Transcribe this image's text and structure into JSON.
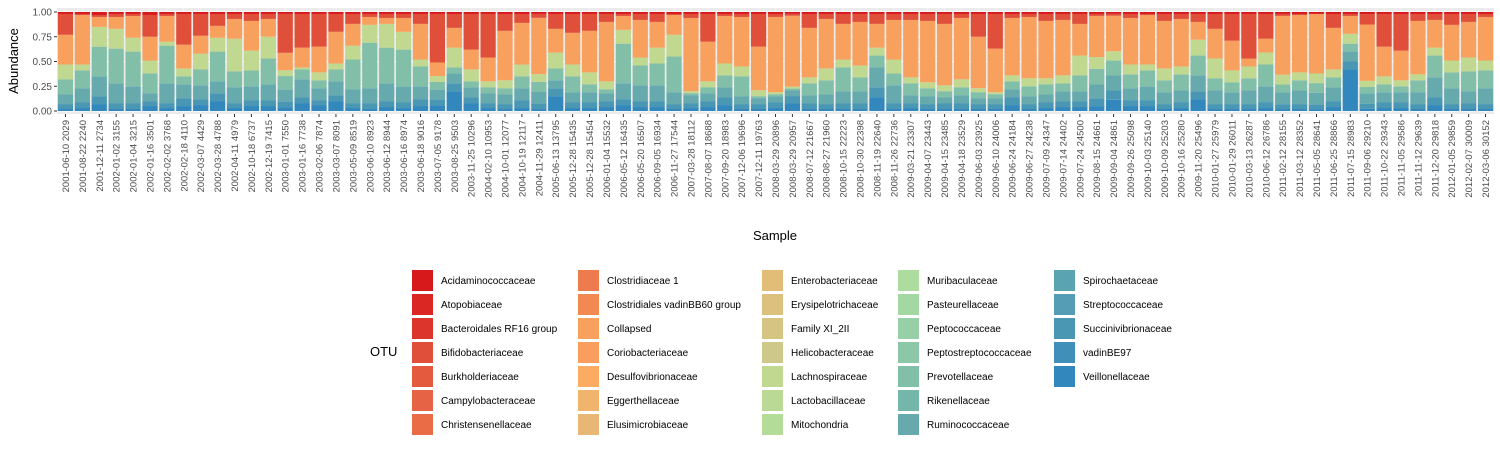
{
  "chart_data": {
    "type": "stacked-bar",
    "xlabel": "Sample",
    "ylabel": "Abundance",
    "ylim": [
      0,
      1
    ],
    "yticks": [
      "0.00",
      "0.25",
      "0.50",
      "0.75",
      "1.00"
    ],
    "grid": true,
    "legend_title": "OTU",
    "legend_position": "bottom",
    "samples": [
      "2001-06-10 2029",
      "2001-08-22 2240",
      "2001-12-11 2734",
      "2002-01-02 3155",
      "2002-01-04 3215",
      "2002-01-16 3501",
      "2002-02-02 3768",
      "2002-02-18 4110",
      "2002-03-07 4429",
      "2002-03-28 4788",
      "2002-04-11 4979",
      "2002-10-18 6737",
      "2002-12-19 7415",
      "2003-01-01 7550",
      "2003-01-16 7738",
      "2003-02-06 7874",
      "2003-03-07 8091",
      "2003-05-09 8519",
      "2003-06-10 8923",
      "2003-06-12 8944",
      "2003-06-16 8974",
      "2003-06-18 9016",
      "2003-07-05 9178",
      "2003-08-25 9503",
      "2003-11-25 10296",
      "2004-02-10 10953",
      "2004-10-01 12077",
      "2004-10-19 12117",
      "2004-11-29 12411",
      "2005-06-13 13795",
      "2005-12-28 15435",
      "2005-12-28 15454",
      "2006-01-04 15532",
      "2006-05-12 16435",
      "2006-05-20 16507",
      "2006-09-05 16934",
      "2006-11-27 17544",
      "2007-03-28 18112",
      "2007-08-07 18688",
      "2007-09-20 18983",
      "2007-12-06 19696",
      "2007-12-11 19763",
      "2008-03-29 20896",
      "2008-03-29 20957",
      "2008-07-12 21667",
      "2008-08-27 21960",
      "2008-10-15 22223",
      "2008-10-30 22398",
      "2008-11-19 22640",
      "2008-11-26 22736",
      "2009-03-21 23307",
      "2009-04-07 23443",
      "2009-04-15 23485",
      "2009-04-18 23529",
      "2009-06-03 23925",
      "2009-06-10 24006",
      "2009-06-24 24184",
      "2009-06-27 24238",
      "2009-07-09 24347",
      "2009-07-14 24402",
      "2009-07-24 24500",
      "2009-08-15 24661",
      "2009-09-04 24861",
      "2009-09-26 25098",
      "2009-10-03 25140",
      "2009-10-09 25203",
      "2009-10-16 25280",
      "2009-11-20 25496",
      "2010-01-27 25979",
      "2010-01-29 26011",
      "2010-03-13 26287",
      "2010-06-12 26786",
      "2011-02-12 28155",
      "2011-03-12 28352",
      "2011-05-05 28641",
      "2011-06-25 28866",
      "2011-07-15 28983",
      "2011-09-06 29210",
      "2011-10-22 29343",
      "2011-11-05 29586",
      "2011-11-12 29639",
      "2011-12-20 29818",
      "2012-01-05 29859",
      "2012-02-07 30009",
      "2012-03-06 30152"
    ],
    "series": [
      {
        "name": "Veillonellaceae",
        "color": "#3287bd",
        "values": [
          0.02,
          0.03,
          0.07,
          0.02,
          0.02,
          0.05,
          0.03,
          0.05,
          0.06,
          0.1,
          0.03,
          0.05,
          0.05,
          0.04,
          0.08,
          0.06,
          0.1,
          0.03,
          0.02,
          0.04,
          0.03,
          0.05,
          0.06,
          0.2,
          0.08,
          0.03,
          0.02,
          0.03,
          0.02,
          0.15,
          0.03,
          0.03,
          0.04,
          0.06,
          0.04,
          0.04,
          0.02,
          0.03,
          0.04,
          0.06,
          0.02,
          0.02,
          0.03,
          0.08,
          0.02,
          0.02,
          0.02,
          0.02,
          0.14,
          0.02,
          0.03,
          0.02,
          0.02,
          0.02,
          0.02,
          0.02,
          0.06,
          0.02,
          0.03,
          0.04,
          0.04,
          0.05,
          0.12,
          0.05,
          0.05,
          0.02,
          0.03,
          0.12,
          0.02,
          0.02,
          0.02,
          0.03,
          0.02,
          0.02,
          0.02,
          0.04,
          0.42,
          0.02,
          0.03,
          0.03,
          0.02,
          0.06,
          0.02,
          0.02,
          0.02
        ]
      },
      {
        "name": "Succinivibrionaceae",
        "color": "#4a97b4",
        "values": [
          0.05,
          0.06,
          0.08,
          0.06,
          0.06,
          0.05,
          0.05,
          0.08,
          0.06,
          0.08,
          0.05,
          0.06,
          0.06,
          0.06,
          0.06,
          0.05,
          0.06,
          0.05,
          0.06,
          0.06,
          0.06,
          0.07,
          0.06,
          0.08,
          0.06,
          0.05,
          0.05,
          0.08,
          0.06,
          0.08,
          0.06,
          0.06,
          0.06,
          0.06,
          0.06,
          0.06,
          0.05,
          0.05,
          0.06,
          0.08,
          0.05,
          0.05,
          0.06,
          0.08,
          0.06,
          0.05,
          0.06,
          0.06,
          0.1,
          0.06,
          0.05,
          0.05,
          0.06,
          0.06,
          0.05,
          0.05,
          0.08,
          0.05,
          0.06,
          0.06,
          0.06,
          0.08,
          0.1,
          0.06,
          0.06,
          0.05,
          0.06,
          0.08,
          0.05,
          0.05,
          0.05,
          0.06,
          0.05,
          0.05,
          0.05,
          0.06,
          0.08,
          0.05,
          0.06,
          0.06,
          0.05,
          0.08,
          0.05,
          0.06,
          0.05
        ]
      },
      {
        "name": "Ruminococcaceae",
        "color": "#66aaad",
        "values": [
          0.1,
          0.14,
          0.2,
          0.2,
          0.17,
          0.08,
          0.2,
          0.14,
          0.14,
          0.12,
          0.16,
          0.14,
          0.16,
          0.12,
          0.18,
          0.12,
          0.14,
          0.14,
          0.15,
          0.18,
          0.16,
          0.13,
          0.1,
          0.1,
          0.1,
          0.1,
          0.1,
          0.12,
          0.12,
          0.08,
          0.1,
          0.1,
          0.08,
          0.16,
          0.16,
          0.16,
          0.12,
          0.08,
          0.08,
          0.1,
          0.08,
          0.06,
          0.06,
          0.06,
          0.08,
          0.1,
          0.12,
          0.12,
          0.2,
          0.18,
          0.08,
          0.08,
          0.06,
          0.08,
          0.06,
          0.06,
          0.08,
          0.08,
          0.08,
          0.1,
          0.1,
          0.14,
          0.16,
          0.12,
          0.14,
          0.12,
          0.12,
          0.16,
          0.14,
          0.12,
          0.14,
          0.16,
          0.12,
          0.14,
          0.12,
          0.14,
          0.1,
          0.1,
          0.1,
          0.1,
          0.12,
          0.2,
          0.16,
          0.12,
          0.16
        ]
      },
      {
        "name": "Prevotellaceae",
        "color": "#82bfa8",
        "values": [
          0.15,
          0.18,
          0.3,
          0.35,
          0.35,
          0.2,
          0.38,
          0.08,
          0.16,
          0.3,
          0.16,
          0.16,
          0.26,
          0.14,
          0.1,
          0.08,
          0.12,
          0.3,
          0.46,
          0.36,
          0.37,
          0.2,
          0.08,
          0.06,
          0.06,
          0.06,
          0.06,
          0.12,
          0.1,
          0.12,
          0.16,
          0.08,
          0.04,
          0.4,
          0.2,
          0.22,
          0.36,
          0.02,
          0.06,
          0.12,
          0.2,
          0.02,
          0.02,
          0.02,
          0.12,
          0.14,
          0.24,
          0.14,
          0.12,
          0.12,
          0.12,
          0.08,
          0.06,
          0.08,
          0.06,
          0.04,
          0.08,
          0.1,
          0.1,
          0.08,
          0.16,
          0.16,
          0.16,
          0.14,
          0.16,
          0.12,
          0.16,
          0.2,
          0.12,
          0.1,
          0.12,
          0.22,
          0.08,
          0.1,
          0.1,
          0.1,
          0.08,
          0.06,
          0.08,
          0.06,
          0.12,
          0.22,
          0.16,
          0.2,
          0.18
        ]
      },
      {
        "name": "Lachnospiraceae",
        "color": "#c0d890",
        "values": [
          0.15,
          0.06,
          0.2,
          0.2,
          0.14,
          0.13,
          0.04,
          0.08,
          0.16,
          0.14,
          0.33,
          0.2,
          0.22,
          0.06,
          0.02,
          0.08,
          0.06,
          0.14,
          0.18,
          0.24,
          0.18,
          0.07,
          0.06,
          0.2,
          0.12,
          0.06,
          0.08,
          0.12,
          0.08,
          0.16,
          0.12,
          0.12,
          0.08,
          0.14,
          0.08,
          0.16,
          0.22,
          0.02,
          0.06,
          0.12,
          0.1,
          0.06,
          0.02,
          0.02,
          0.06,
          0.12,
          0.08,
          0.12,
          0.08,
          0.14,
          0.06,
          0.06,
          0.06,
          0.08,
          0.04,
          0.02,
          0.06,
          0.08,
          0.06,
          0.08,
          0.2,
          0.12,
          0.1,
          0.1,
          0.06,
          0.12,
          0.08,
          0.16,
          0.2,
          0.12,
          0.12,
          0.12,
          0.1,
          0.08,
          0.1,
          0.08,
          0.1,
          0.06,
          0.08,
          0.06,
          0.06,
          0.08,
          0.12,
          0.14,
          0.1
        ]
      },
      {
        "name": "Collapsed",
        "color": "#f8a05e",
        "values": [
          0.3,
          0.5,
          0.1,
          0.12,
          0.22,
          0.24,
          0.26,
          0.24,
          0.18,
          0.12,
          0.2,
          0.3,
          0.18,
          0.18,
          0.2,
          0.26,
          0.32,
          0.22,
          0.08,
          0.06,
          0.14,
          0.36,
          0.14,
          0.2,
          0.2,
          0.24,
          0.5,
          0.42,
          0.58,
          0.24,
          0.32,
          0.42,
          0.6,
          0.14,
          0.38,
          0.26,
          0.2,
          0.74,
          0.4,
          0.48,
          0.5,
          0.44,
          0.76,
          0.76,
          0.5,
          0.5,
          0.36,
          0.44,
          0.24,
          0.4,
          0.58,
          0.62,
          0.62,
          0.62,
          0.52,
          0.44,
          0.58,
          0.62,
          0.58,
          0.56,
          0.32,
          0.42,
          0.38,
          0.47,
          0.5,
          0.48,
          0.48,
          0.18,
          0.3,
          0.3,
          0.08,
          0.14,
          0.6,
          0.58,
          0.62,
          0.42,
          0.18,
          0.54,
          0.3,
          0.3,
          0.54,
          0.28,
          0.36,
          0.36,
          0.44
        ]
      },
      {
        "name": "Bifidobacteriaceae",
        "color": "#e04f39",
        "values": [
          0.21,
          0.01,
          0.02,
          0.03,
          0.02,
          0.22,
          0.02,
          0.31,
          0.22,
          0.12,
          0.05,
          0.07,
          0.05,
          0.4,
          0.34,
          0.33,
          0.18,
          0.1,
          0.03,
          0.04,
          0.04,
          0.1,
          0.5,
          0.14,
          0.36,
          0.44,
          0.17,
          0.09,
          0.04,
          0.15,
          0.19,
          0.17,
          0.08,
          0.02,
          0.06,
          0.08,
          0.01,
          0.04,
          0.28,
          0.02,
          0.03,
          0.33,
          0.03,
          0.02,
          0.14,
          0.05,
          0.1,
          0.08,
          0.1,
          0.06,
          0.06,
          0.07,
          0.1,
          0.04,
          0.23,
          0.35,
          0.04,
          0.03,
          0.07,
          0.06,
          0.1,
          0.02,
          0.02,
          0.04,
          0.01,
          0.07,
          0.05,
          0.08,
          0.15,
          0.27,
          0.45,
          0.25,
          0.02,
          0.01,
          0.0,
          0.14,
          0.02,
          0.1,
          0.33,
          0.37,
          0.07,
          0.06,
          0.11,
          0.08,
          0.03
        ]
      },
      {
        "name": "Acidaminococcaceae",
        "color": "#d7191c",
        "values": [
          0.02,
          0.02,
          0.03,
          0.02,
          0.02,
          0.03,
          0.02,
          0.02,
          0.02,
          0.02,
          0.02,
          0.02,
          0.02,
          0.02,
          0.02,
          0.02,
          0.02,
          0.02,
          0.02,
          0.02,
          0.02,
          0.02,
          0.02,
          0.02,
          0.02,
          0.02,
          0.02,
          0.02,
          0.02,
          0.02,
          0.02,
          0.02,
          0.02,
          0.02,
          0.02,
          0.02,
          0.02,
          0.02,
          0.02,
          0.02,
          0.02,
          0.02,
          0.02,
          0.02,
          0.02,
          0.02,
          0.02,
          0.02,
          0.02,
          0.02,
          0.02,
          0.02,
          0.02,
          0.02,
          0.02,
          0.02,
          0.02,
          0.02,
          0.02,
          0.02,
          0.02,
          0.02,
          0.02,
          0.02,
          0.02,
          0.02,
          0.02,
          0.02,
          0.02,
          0.02,
          0.02,
          0.02,
          0.02,
          0.02,
          0.02,
          0.02,
          0.02,
          0.02,
          0.02,
          0.02,
          0.02,
          0.02,
          0.02,
          0.02,
          0.02
        ]
      }
    ],
    "legend": [
      {
        "name": "Acidaminococcaceae",
        "color": "#d7191c"
      },
      {
        "name": "Atopobiaceae",
        "color": "#da2723"
      },
      {
        "name": "Bacteroidales RF16 group",
        "color": "#dc362c"
      },
      {
        "name": "Bifidobacteriaceae",
        "color": "#e04f39"
      },
      {
        "name": "Burkholderiaceae",
        "color": "#e35a3f"
      },
      {
        "name": "Campylobacteraceae",
        "color": "#e66345"
      },
      {
        "name": "Christensenellaceae",
        "color": "#e96c46"
      },
      {
        "name": "Clostridiaceae 1",
        "color": "#ee7b4e"
      },
      {
        "name": "Clostridiales vadinBB60 group",
        "color": "#f28953"
      },
      {
        "name": "Collapsed",
        "color": "#f8a05e"
      },
      {
        "name": "Coriobacteriaceae",
        "color": "#f99e5e"
      },
      {
        "name": "Desulfovibrionaceae",
        "color": "#fbab62"
      },
      {
        "name": "Eggerthellaceae",
        "color": "#f0b46d"
      },
      {
        "name": "Elusimicrobiaceae",
        "color": "#e8b675"
      },
      {
        "name": "Enterobacteriaceae",
        "color": "#e2bd78"
      },
      {
        "name": "Erysipelotrichaceae",
        "color": "#dcc07d"
      },
      {
        "name": "Family XI_2II",
        "color": "#d6c483"
      },
      {
        "name": "Helicobacteraceae",
        "color": "#cec88b"
      },
      {
        "name": "Lachnospiraceae",
        "color": "#c0d890"
      },
      {
        "name": "Lactobacillaceae",
        "color": "#b9d995"
      },
      {
        "name": "Mitochondria",
        "color": "#b3dc98"
      },
      {
        "name": "Muribaculaceae",
        "color": "#acdc9e"
      },
      {
        "name": "Pasteurellaceae",
        "color": "#a4d8a3"
      },
      {
        "name": "Peptococcaceae",
        "color": "#97cfa7"
      },
      {
        "name": "Peptostreptococcaceae",
        "color": "#8cc8a8"
      },
      {
        "name": "Prevotellaceae",
        "color": "#82bfa8"
      },
      {
        "name": "Rikenellaceae",
        "color": "#74b6aa"
      },
      {
        "name": "Ruminococcaceae",
        "color": "#66aaad"
      },
      {
        "name": "Spirochaetaceae",
        "color": "#5aa4b1"
      },
      {
        "name": "Streptococcaceae",
        "color": "#549db4"
      },
      {
        "name": "Succinivibrionaceae",
        "color": "#4a97b4"
      },
      {
        "name": "vadinBE97",
        "color": "#3f8fb8"
      },
      {
        "name": "Veillonellaceae",
        "color": "#3287bd"
      }
    ]
  }
}
